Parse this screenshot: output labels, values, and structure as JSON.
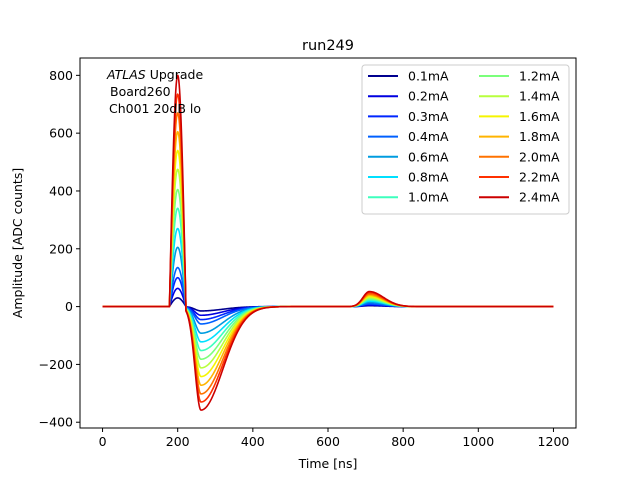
{
  "chart_data": {
    "type": "line",
    "title": "run249",
    "xlabel": "Time [ns]",
    "ylabel": "Amplitude [ADC counts]",
    "xlim": [
      -60,
      1260
    ],
    "ylim": [
      -420,
      860
    ],
    "xticks": [
      0,
      200,
      400,
      600,
      800,
      1000,
      1200
    ],
    "yticks": [
      -400,
      -200,
      0,
      200,
      400,
      600,
      800
    ],
    "xtick_labels": [
      "0",
      "200",
      "400",
      "600",
      "800",
      "1000",
      "1200"
    ],
    "ytick_labels": [
      "−400",
      "−200",
      "0",
      "200",
      "400",
      "600",
      "800"
    ],
    "grid": false,
    "legend": {
      "placement": "top-right",
      "columns": 2
    },
    "annotation": {
      "line1_italic": "ATLAS",
      "line1_rest": " Upgrade",
      "line2": "Board260",
      "line3": "Ch001 20dB lo"
    },
    "series": [
      {
        "name": "0.1mA",
        "color": "#00008f",
        "peak": 30,
        "undershoot": -15,
        "bump": 3
      },
      {
        "name": "0.2mA",
        "color": "#0000e0",
        "peak": 63,
        "undershoot": -30,
        "bump": 5
      },
      {
        "name": "0.3mA",
        "color": "#0026ff",
        "peak": 100,
        "undershoot": -45,
        "bump": 8
      },
      {
        "name": "0.4mA",
        "color": "#0060ff",
        "peak": 135,
        "undershoot": -60,
        "bump": 10
      },
      {
        "name": "0.6mA",
        "color": "#009cdf",
        "peak": 205,
        "undershoot": -92,
        "bump": 15
      },
      {
        "name": "0.8mA",
        "color": "#00e0ff",
        "peak": 270,
        "undershoot": -122,
        "bump": 19
      },
      {
        "name": "1.0mA",
        "color": "#3dffbd",
        "peak": 340,
        "undershoot": -152,
        "bump": 23
      },
      {
        "name": "1.2mA",
        "color": "#7bff7b",
        "peak": 405,
        "undershoot": -182,
        "bump": 27
      },
      {
        "name": "1.4mA",
        "color": "#b8ff3e",
        "peak": 475,
        "undershoot": -212,
        "bump": 31
      },
      {
        "name": "1.6mA",
        "color": "#f5f500",
        "peak": 540,
        "undershoot": -242,
        "bump": 35
      },
      {
        "name": "1.8mA",
        "color": "#ffb400",
        "peak": 605,
        "undershoot": -272,
        "bump": 39
      },
      {
        "name": "2.0mA",
        "color": "#ff7200",
        "peak": 670,
        "undershoot": -302,
        "bump": 43
      },
      {
        "name": "2.2mA",
        "color": "#ff3000",
        "peak": 735,
        "undershoot": -330,
        "bump": 48
      },
      {
        "name": "2.4mA",
        "color": "#cc0000",
        "peak": 800,
        "undershoot": -358,
        "bump": 52
      }
    ]
  }
}
